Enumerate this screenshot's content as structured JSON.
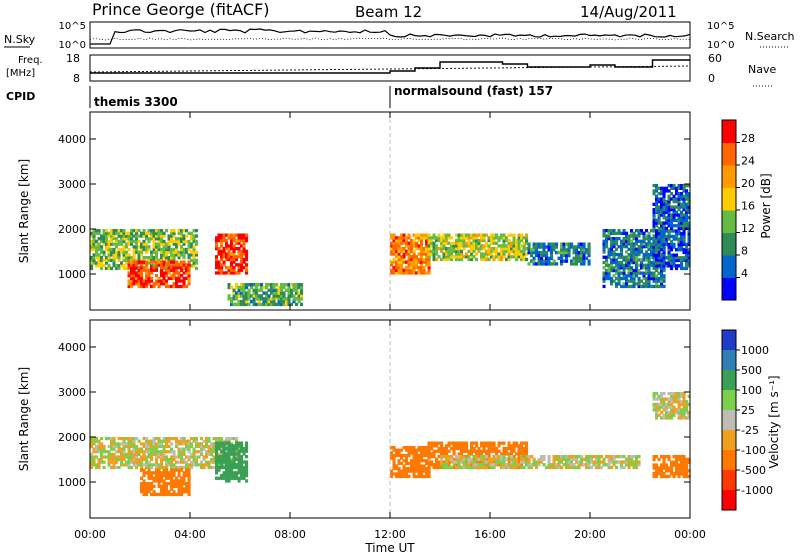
{
  "header": {
    "station": "Prince George (fitACF)",
    "beam": "Beam 12",
    "date": "14/Aug/2011"
  },
  "noise_panel": {
    "left_label": "N.Sky",
    "left_ticks": [
      "10^5",
      "10^0"
    ],
    "right_ticks": [
      "10^5",
      "10^0"
    ],
    "right_label": "N.Search"
  },
  "freq_panel": {
    "left_label_top": "Freq.",
    "left_label_bottom": "[MHz]",
    "left_ticks": [
      "18",
      "8"
    ],
    "right_ticks": [
      "60",
      "0"
    ],
    "right_label": "Nave"
  },
  "cpid": {
    "label": "CPID",
    "modes": [
      {
        "name": "themis 3300",
        "start_hour": 0
      },
      {
        "name": "normalsound (fast) 157",
        "start_hour": 12
      }
    ]
  },
  "axes": {
    "ylabel": "Slant Range [km]",
    "yticks": [
      "4000",
      "3000",
      "2000",
      "1000"
    ],
    "ytick_values": [
      4000,
      3000,
      2000,
      1000
    ],
    "ylim": [
      200,
      4600
    ],
    "xlabel": "Time UT",
    "xticks": [
      "00:00",
      "04:00",
      "08:00",
      "12:00",
      "16:00",
      "20:00",
      "00:00"
    ],
    "xlim_hours": [
      0,
      24
    ]
  },
  "power_colorbar": {
    "label": "Power [dB]",
    "ticks": [
      "28",
      "24",
      "20",
      "16",
      "12",
      "8",
      "4"
    ],
    "colors": [
      "#0000ff",
      "#0066cc",
      "#2e8b57",
      "#66bb44",
      "#ffcc00",
      "#ff9900",
      "#ff6600",
      "#ff0000"
    ]
  },
  "velocity_colorbar": {
    "label": "Velocity [m s⁻¹]",
    "ticks": [
      "1000",
      "500",
      "100",
      "25",
      "-25",
      "-100",
      "-500",
      "-1000"
    ],
    "colors": [
      "#1e3cc8",
      "#2f7fb3",
      "#3aa056",
      "#7ad04a",
      "#bdbdb5",
      "#f0a020",
      "#ff7800",
      "#ff3a00",
      "#ff0000"
    ]
  },
  "chart_data": {
    "type": "heatmap",
    "title": "Prince George (fitACF) Beam 12 14/Aug/2011",
    "xlabel": "Time UT",
    "ylabel": "Slant Range [km]",
    "xlim": [
      0,
      24
    ],
    "ylim": [
      200,
      4600
    ],
    "power_echo_regions": [
      {
        "t0": 0.0,
        "t1": 4.3,
        "r0": 1100,
        "r1": 2000,
        "level_db": 14
      },
      {
        "t0": 1.5,
        "t1": 4.0,
        "r0": 700,
        "r1": 1300,
        "level_db": 28
      },
      {
        "t0": 5.0,
        "t1": 6.3,
        "r0": 1000,
        "r1": 1900,
        "level_db": 28
      },
      {
        "t0": 5.5,
        "t1": 8.5,
        "r0": 300,
        "r1": 800,
        "level_db": 12
      },
      {
        "t0": 12.0,
        "t1": 13.6,
        "r0": 1000,
        "r1": 1900,
        "level_db": 24
      },
      {
        "t0": 13.5,
        "t1": 17.5,
        "r0": 1300,
        "r1": 1900,
        "level_db": 16
      },
      {
        "t0": 17.5,
        "t1": 20.0,
        "r0": 1200,
        "r1": 1700,
        "level_db": 8
      },
      {
        "t0": 20.5,
        "t1": 23.0,
        "r0": 700,
        "r1": 2000,
        "level_db": 8
      },
      {
        "t0": 22.5,
        "t1": 24.0,
        "r0": 1100,
        "r1": 3000,
        "level_db": 6
      }
    ],
    "velocity_echo_regions": [
      {
        "t0": 0.0,
        "t1": 6.0,
        "r0": 1300,
        "r1": 2000,
        "vel": 0
      },
      {
        "t0": 2.0,
        "t1": 4.0,
        "r0": 700,
        "r1": 1300,
        "vel": -200
      },
      {
        "t0": 5.0,
        "t1": 6.3,
        "r0": 1000,
        "r1": 1900,
        "vel": 300
      },
      {
        "t0": 12.0,
        "t1": 13.6,
        "r0": 1100,
        "r1": 1800,
        "vel": -300
      },
      {
        "t0": 13.5,
        "t1": 17.5,
        "r0": 1300,
        "r1": 1900,
        "vel": -200
      },
      {
        "t0": 14.0,
        "t1": 22.0,
        "r0": 1300,
        "r1": 1600,
        "vel": 0
      },
      {
        "t0": 22.5,
        "t1": 24.0,
        "r0": 1100,
        "r1": 1600,
        "vel": -400
      },
      {
        "t0": 22.5,
        "t1": 24.0,
        "r0": 2400,
        "r1": 3000,
        "vel": 0
      }
    ]
  }
}
